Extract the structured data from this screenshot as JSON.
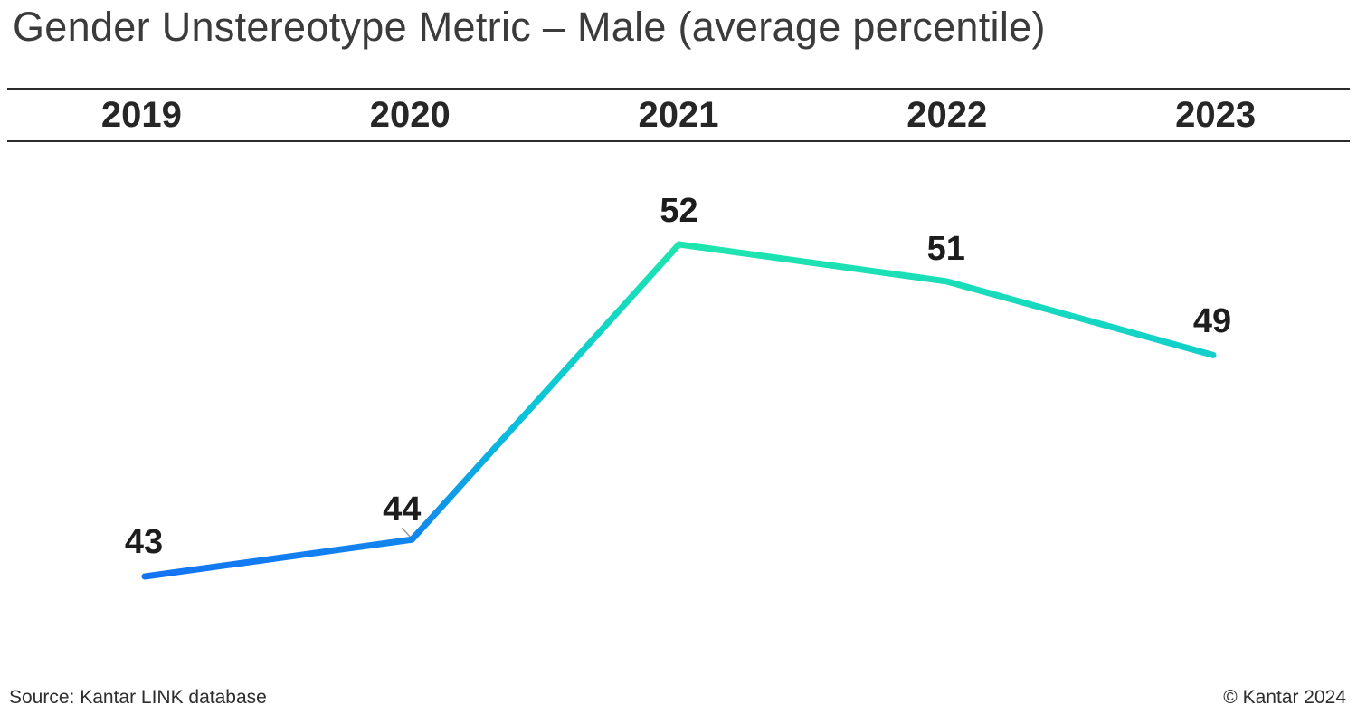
{
  "chart_data": {
    "type": "line",
    "title": "Gender Unstereotype Metric – Male (average percentile)",
    "categories": [
      "2019",
      "2020",
      "2021",
      "2022",
      "2023"
    ],
    "values": [
      43,
      44,
      52,
      51,
      49
    ],
    "series": [
      {
        "name": "Male average percentile",
        "values": [
          43,
          44,
          52,
          51,
          49
        ]
      }
    ],
    "xlabel": "",
    "ylabel": "",
    "data_labels": true,
    "legend": false,
    "grid": false,
    "y_axis_visible": false
  },
  "footer": {
    "source": "Source: Kantar LINK database",
    "copyright": "© Kantar 2024"
  },
  "colors": {
    "line_gradient_bottom": "#146EF5",
    "line_gradient_mid": "#0AC2DB",
    "line_gradient_top": "#1FE7AC",
    "leader_line": "#9B9B9B",
    "title_text": "#3B3B3B",
    "year_text": "#262626",
    "label_text": "#1D1D1D",
    "rule": "#2B2B2B",
    "background": "#FFFFFF"
  }
}
